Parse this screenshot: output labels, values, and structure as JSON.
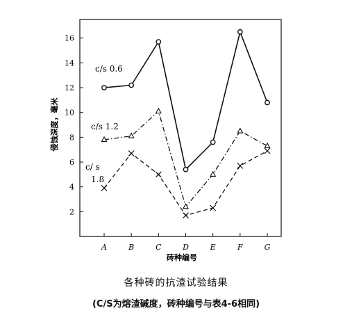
{
  "chart_data": {
    "type": "line",
    "categories": [
      "A",
      "B",
      "C",
      "D",
      "E",
      "F",
      "G"
    ],
    "series": [
      {
        "name": "c/s 0.6",
        "values": [
          12.0,
          12.2,
          15.7,
          5.4,
          7.6,
          16.5,
          10.8
        ],
        "marker": "circle",
        "dash": "solid"
      },
      {
        "name": "c/s 1.2",
        "values": [
          7.8,
          8.1,
          10.1,
          2.4,
          5.0,
          8.5,
          7.3
        ],
        "marker": "triangle",
        "dash": "dashdot"
      },
      {
        "name": "c/s 1.8",
        "values": [
          3.9,
          6.7,
          5.0,
          1.7,
          2.3,
          5.7,
          6.9
        ],
        "marker": "x",
        "dash": "dashed"
      }
    ],
    "ylabel": "侵蚀深度，毫米",
    "xlabel": "砖种编号",
    "ylim": [
      0,
      17.5
    ],
    "yticks": [
      2,
      4,
      6,
      8,
      10,
      12,
      14,
      16
    ],
    "grid": false
  },
  "series_labels": {
    "s1": "c/s 0.6",
    "s2": "c/s 1.2",
    "s3_line1": "c/ s",
    "s3_line2": "1.8"
  },
  "caption": {
    "title": "各种砖的抗渣试验结果",
    "note": "(C/S为熔渣碱度，砖种编号与表4-6相同)"
  }
}
